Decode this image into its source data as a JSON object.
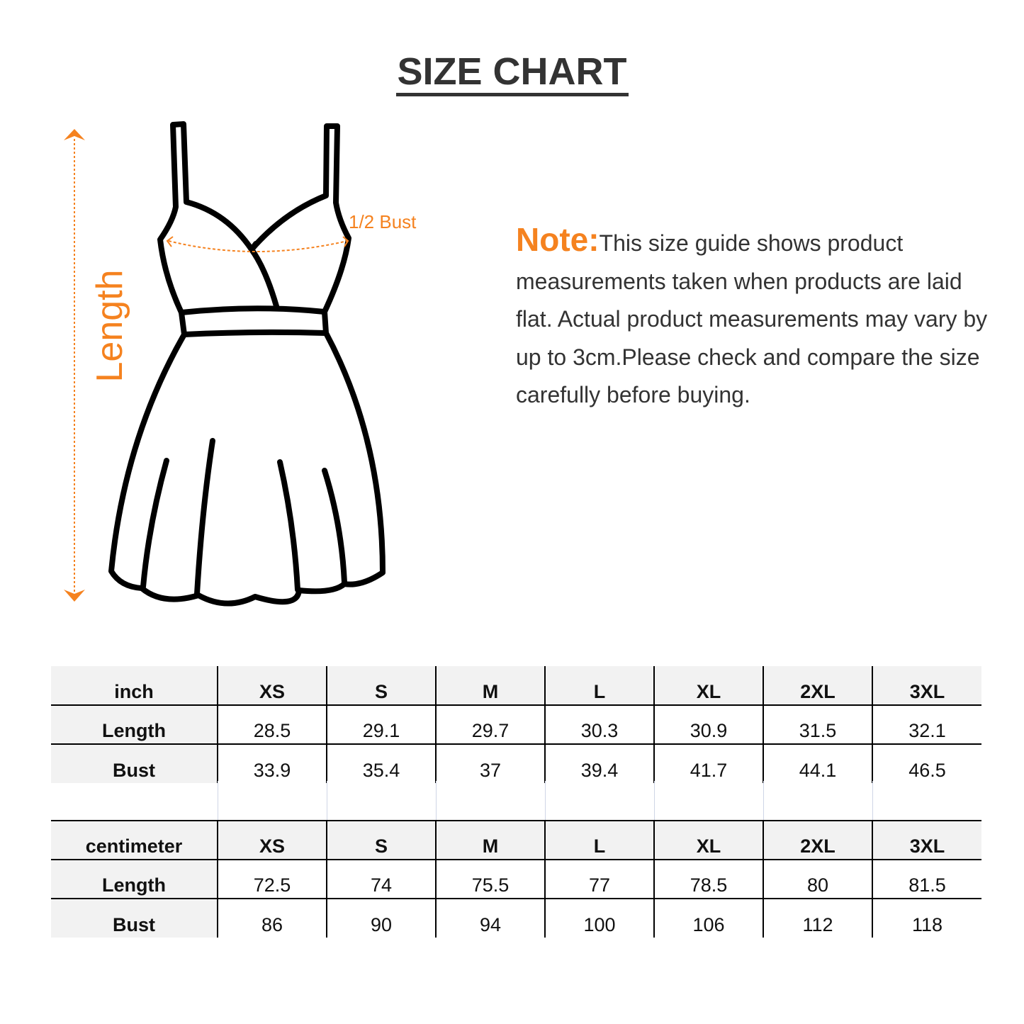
{
  "title": "SIZE CHART",
  "labels": {
    "length": "Length",
    "half_bust": "1/2 Bust"
  },
  "note": {
    "heading": "Note:",
    "text": "This size guide shows product measurements taken when products are laid flat. Actual product measurements may vary by up to 3cm.Please check and compare the size carefully before buying."
  },
  "colors": {
    "accent": "#f5821f",
    "text": "#333333",
    "header_bg": "#f2f2f2"
  },
  "inch_table": {
    "unit": "inch",
    "sizes": [
      "XS",
      "S",
      "M",
      "L",
      "XL",
      "2XL",
      "3XL"
    ],
    "rows": [
      {
        "label": "Length",
        "values": [
          "28.5",
          "29.1",
          "29.7",
          "30.3",
          "30.9",
          "31.5",
          "32.1"
        ]
      },
      {
        "label": "Bust",
        "values": [
          "33.9",
          "35.4",
          "37",
          "39.4",
          "41.7",
          "44.1",
          "46.5"
        ]
      }
    ]
  },
  "cm_table": {
    "unit": "centimeter",
    "sizes": [
      "XS",
      "S",
      "M",
      "L",
      "XL",
      "2XL",
      "3XL"
    ],
    "rows": [
      {
        "label": "Length",
        "values": [
          "72.5",
          "74",
          "75.5",
          "77",
          "78.5",
          "80",
          "81.5"
        ]
      },
      {
        "label": "Bust",
        "values": [
          "86",
          "90",
          "94",
          "100",
          "106",
          "112",
          "118"
        ]
      }
    ]
  }
}
